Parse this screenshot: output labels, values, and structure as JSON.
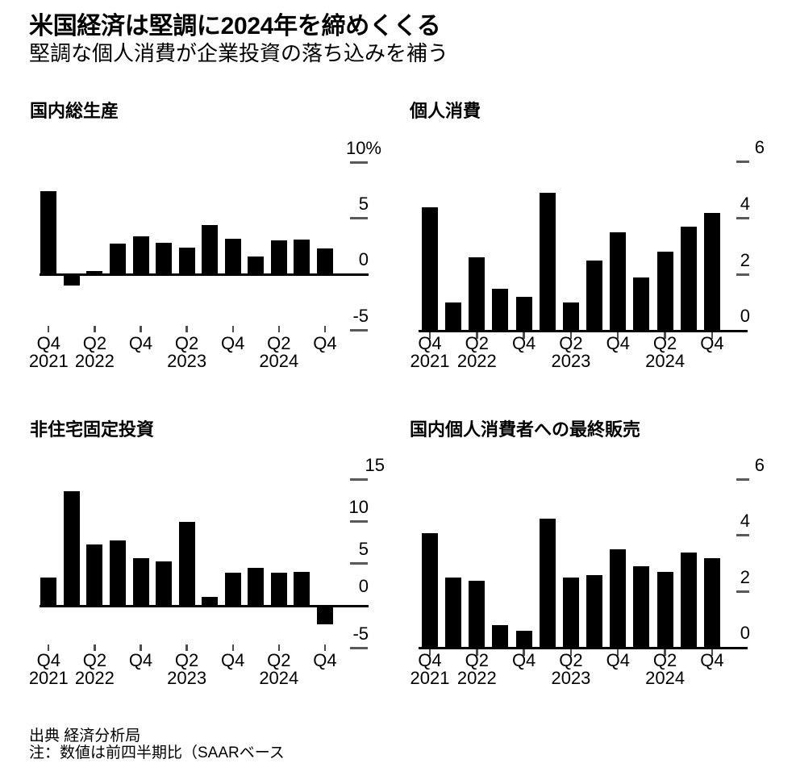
{
  "header": {
    "title": "米国経済は堅調に2024年を締めくくる",
    "subtitle": "堅調な個人消費が企業投資の落ち込みを補う"
  },
  "footer": {
    "source": "出典 経済分析局",
    "note": "注：数値は前四半期比（SAARベース"
  },
  "colors": {
    "bar": "#000000",
    "baseline": "#000000",
    "tick_dash": "#595959",
    "background": "#ffffff",
    "text": "#000000"
  },
  "x_axis": {
    "ticks": [
      {
        "index": 0,
        "line1": "Q4",
        "line2": "2021"
      },
      {
        "index": 2,
        "line1": "Q2",
        "line2": "2022"
      },
      {
        "index": 4,
        "line1": "Q4",
        "line2": ""
      },
      {
        "index": 6,
        "line1": "Q2",
        "line2": "2023"
      },
      {
        "index": 8,
        "line1": "Q4",
        "line2": ""
      },
      {
        "index": 10,
        "line1": "Q2",
        "line2": "2024"
      },
      {
        "index": 12,
        "line1": "Q4",
        "line2": ""
      }
    ]
  },
  "chart_data": [
    {
      "id": "gdp",
      "type": "bar",
      "title": "国内総生産",
      "categories": [
        "2021 Q4",
        "2022 Q1",
        "2022 Q2",
        "2022 Q3",
        "2022 Q4",
        "2023 Q1",
        "2023 Q2",
        "2023 Q3",
        "2023 Q4",
        "2024 Q1",
        "2024 Q2",
        "2024 Q3",
        "2024 Q4"
      ],
      "values": [
        7.4,
        -1.0,
        0.3,
        2.7,
        3.4,
        2.8,
        2.4,
        4.4,
        3.2,
        1.6,
        3.0,
        3.1,
        2.3
      ],
      "y_ticks": [
        {
          "value": 10,
          "label": "10%"
        },
        {
          "value": 5,
          "label": "5"
        },
        {
          "value": 0,
          "label": "0"
        },
        {
          "value": -5,
          "label": "-5"
        }
      ],
      "ylim": [
        -5,
        10
      ],
      "xlabel": "",
      "ylabel": "",
      "grid": false,
      "y_axis_side": "right"
    },
    {
      "id": "personal-consumption",
      "type": "bar",
      "title": "個人消費",
      "categories": [
        "2021 Q4",
        "2022 Q1",
        "2022 Q2",
        "2022 Q3",
        "2022 Q4",
        "2023 Q1",
        "2023 Q2",
        "2023 Q3",
        "2023 Q4",
        "2024 Q1",
        "2024 Q2",
        "2024 Q3",
        "2024 Q4"
      ],
      "values": [
        4.4,
        1.0,
        2.6,
        1.5,
        1.2,
        4.9,
        1.0,
        2.5,
        3.5,
        1.9,
        2.8,
        3.7,
        4.2
      ],
      "y_ticks": [
        {
          "value": 6,
          "label": "6"
        },
        {
          "value": 4,
          "label": "4"
        },
        {
          "value": 2,
          "label": "2"
        },
        {
          "value": 0,
          "label": "0"
        }
      ],
      "ylim": [
        0,
        6
      ],
      "xlabel": "",
      "ylabel": "",
      "grid": false,
      "y_axis_side": "right"
    },
    {
      "id": "nonresidential-fixed-investment",
      "type": "bar",
      "title": "非住宅固定投資",
      "categories": [
        "2021 Q4",
        "2022 Q1",
        "2022 Q2",
        "2022 Q3",
        "2022 Q4",
        "2023 Q1",
        "2023 Q2",
        "2023 Q3",
        "2023 Q4",
        "2024 Q1",
        "2024 Q2",
        "2024 Q3",
        "2024 Q4"
      ],
      "values": [
        3.4,
        13.6,
        7.3,
        7.8,
        5.7,
        5.3,
        10.0,
        1.1,
        3.9,
        4.5,
        3.9,
        4.0,
        -2.2
      ],
      "y_ticks": [
        {
          "value": 15,
          "label": "15"
        },
        {
          "value": 10,
          "label": "10"
        },
        {
          "value": 5,
          "label": "5"
        },
        {
          "value": 0,
          "label": "0"
        },
        {
          "value": -5,
          "label": "-5"
        }
      ],
      "ylim": [
        -5,
        15
      ],
      "xlabel": "",
      "ylabel": "",
      "grid": false,
      "y_axis_side": "right"
    },
    {
      "id": "final-sales-to-domestic-purchasers",
      "type": "bar",
      "title": "国内個人消費者への最終販売",
      "categories": [
        "2021 Q4",
        "2022 Q1",
        "2022 Q2",
        "2022 Q3",
        "2022 Q4",
        "2023 Q1",
        "2023 Q2",
        "2023 Q3",
        "2023 Q4",
        "2024 Q1",
        "2024 Q2",
        "2024 Q3",
        "2024 Q4"
      ],
      "values": [
        4.1,
        2.5,
        2.4,
        0.8,
        0.6,
        4.6,
        2.5,
        2.6,
        3.5,
        2.9,
        2.7,
        3.4,
        3.2
      ],
      "y_ticks": [
        {
          "value": 6,
          "label": "6"
        },
        {
          "value": 4,
          "label": "4"
        },
        {
          "value": 2,
          "label": "2"
        },
        {
          "value": 0,
          "label": "0"
        }
      ],
      "ylim": [
        0,
        6
      ],
      "xlabel": "",
      "ylabel": "",
      "grid": false,
      "y_axis_side": "right"
    }
  ]
}
